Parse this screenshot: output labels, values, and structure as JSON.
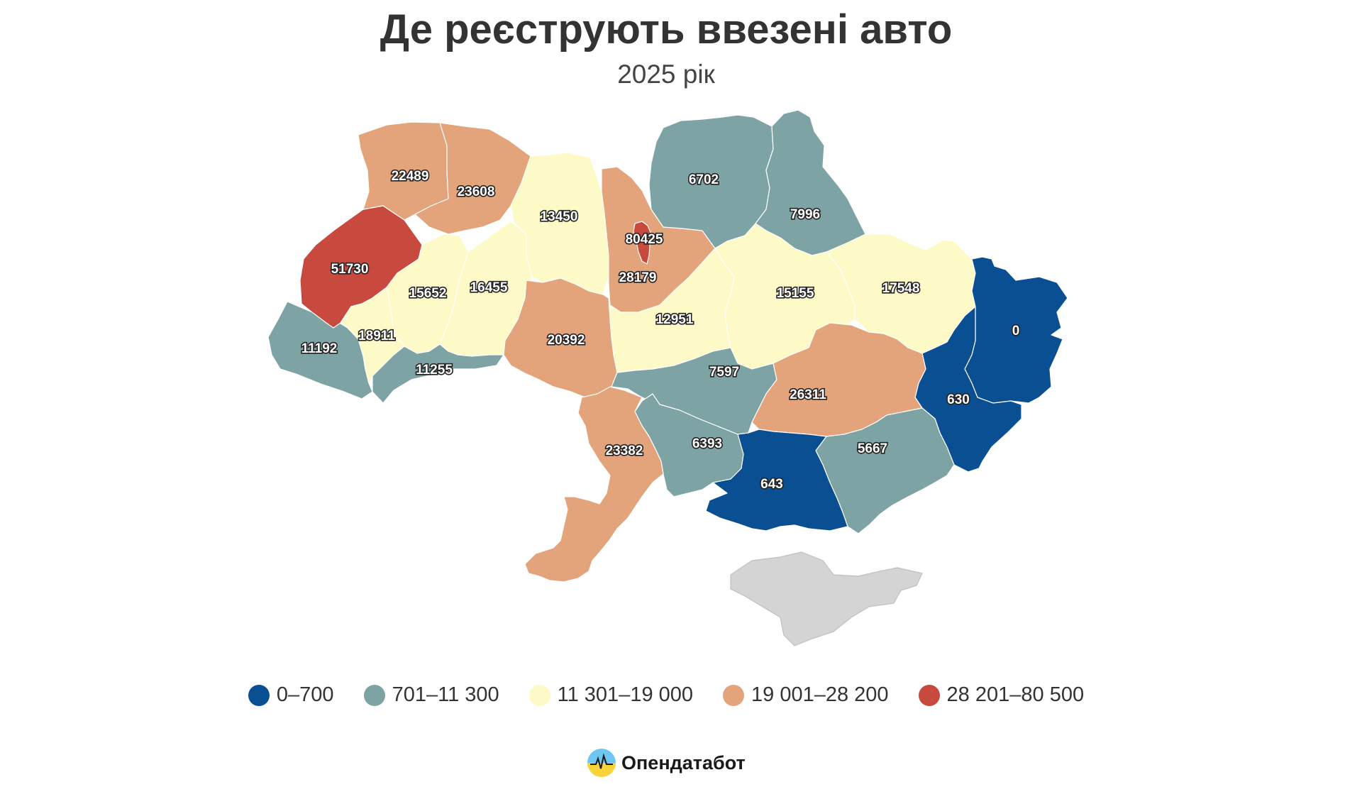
{
  "title": "Де реєструють ввезені авто",
  "subtitle": "2025 рік",
  "colors": {
    "c1": "#0b4f93",
    "c2": "#7ea3a5",
    "c3": "#fdfac7",
    "c4": "#e3a37b",
    "c5": "#c8493e",
    "crimea": "#d4d4d4",
    "border": "#ffffff"
  },
  "legend": [
    {
      "label": "0–700",
      "color": "#0b4f93"
    },
    {
      "label": "701–11 300",
      "color": "#7ea3a5"
    },
    {
      "label": "11 301–19 000",
      "color": "#fdfac7"
    },
    {
      "label": "19 001–28 200",
      "color": "#e3a37b"
    },
    {
      "label": "28 201–80 500",
      "color": "#c8493e"
    }
  ],
  "regions": [
    {
      "id": "volyn",
      "value": "22489",
      "cls": "c4"
    },
    {
      "id": "rivne",
      "value": "23608",
      "cls": "c4"
    },
    {
      "id": "zhytomyr",
      "value": "13450",
      "cls": "c3"
    },
    {
      "id": "kyiv-city",
      "value": "80425",
      "cls": "c5"
    },
    {
      "id": "kyiv-oblast",
      "value": "28179",
      "cls": "c4"
    },
    {
      "id": "chernihiv",
      "value": "6702",
      "cls": "c2"
    },
    {
      "id": "sumy",
      "value": "7996",
      "cls": "c2"
    },
    {
      "id": "lviv",
      "value": "51730",
      "cls": "c5"
    },
    {
      "id": "ternopil",
      "value": "15652",
      "cls": "c3"
    },
    {
      "id": "khmelnytskyi",
      "value": "16455",
      "cls": "c3"
    },
    {
      "id": "zakarpattia",
      "value": "11192",
      "cls": "c2"
    },
    {
      "id": "ivano-frankivsk",
      "value": "18911",
      "cls": "c3"
    },
    {
      "id": "chernivtsi",
      "value": "11255",
      "cls": "c2"
    },
    {
      "id": "vinnytsia",
      "value": "20392",
      "cls": "c4"
    },
    {
      "id": "cherkasy",
      "value": "12951",
      "cls": "c3"
    },
    {
      "id": "poltava",
      "value": "15155",
      "cls": "c3"
    },
    {
      "id": "kharkiv",
      "value": "17548",
      "cls": "c3"
    },
    {
      "id": "luhansk",
      "value": "0",
      "cls": "c1"
    },
    {
      "id": "donetsk",
      "value": "630",
      "cls": "c1"
    },
    {
      "id": "kirovohrad",
      "value": "7597",
      "cls": "c2"
    },
    {
      "id": "dnipropetrovsk",
      "value": "26311",
      "cls": "c4"
    },
    {
      "id": "odesa",
      "value": "23382",
      "cls": "c4"
    },
    {
      "id": "mykolaiv",
      "value": "6393",
      "cls": "c2"
    },
    {
      "id": "kherson",
      "value": "643",
      "cls": "c1"
    },
    {
      "id": "zaporizhzhia",
      "value": "5667",
      "cls": "c2"
    }
  ],
  "logo": {
    "text": "Опендатабот",
    "icon": "opendatabot-logo-icon"
  }
}
